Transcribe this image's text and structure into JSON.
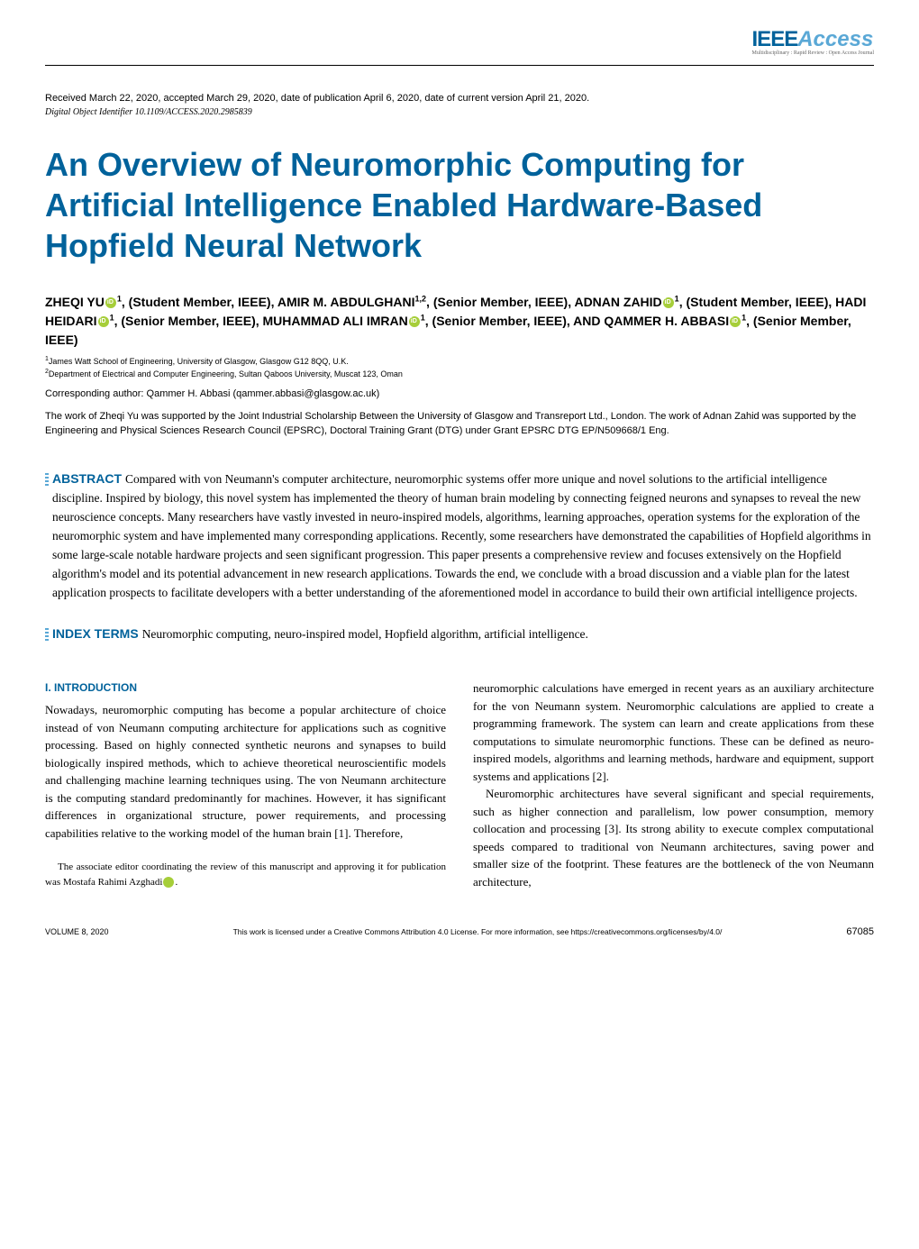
{
  "logo": {
    "ieee": "IEEE",
    "access": "Access",
    "tagline": "Multidisciplinary : Rapid Review : Open Access Journal"
  },
  "received_line": "Received March 22, 2020, accepted March 29, 2020, date of publication April 6, 2020, date of current version April 21, 2020.",
  "doi_line": "Digital Object Identifier 10.1109/ACCESS.2020.2985839",
  "title": "An Overview of Neuromorphic Computing for Artificial Intelligence Enabled Hardware-Based Hopfield Neural Network",
  "authors_html": "ZHEQI YU<span class='orcid'></span><sup>1</sup>, (Student Member, IEEE), AMIR M. ABDULGHANI<sup>1,2</sup>, (Senior Member, IEEE), ADNAN ZAHID<span class='orcid'></span><sup>1</sup>, (Student Member, IEEE), HADI HEIDARI<span class='orcid'></span><sup>1</sup>, (Senior Member, IEEE), MUHAMMAD ALI IMRAN<span class='orcid'></span><sup>1</sup>, (Senior Member, IEEE), AND QAMMER H. ABBASI<span class='orcid'></span><sup>1</sup>, (Senior Member, IEEE)",
  "affiliations": {
    "a1": "James Watt School of Engineering, University of Glasgow, Glasgow G12 8QQ, U.K.",
    "a2": "Department of Electrical and Computer Engineering, Sultan Qaboos University, Muscat 123, Oman"
  },
  "corresponding": "Corresponding author: Qammer H. Abbasi (qammer.abbasi@glasgow.ac.uk)",
  "funding": "The work of Zheqi Yu was supported by the Joint Industrial Scholarship Between the University of Glasgow and Transreport Ltd., London. The work of Adnan Zahid was supported by the Engineering and Physical Sciences Research Council (EPSRC), Doctoral Training Grant (DTG) under Grant EPSRC DTG EP/N509668/1 Eng.",
  "abstract": {
    "label": "ABSTRACT",
    "text": "Compared with von Neumann's computer architecture, neuromorphic systems offer more unique and novel solutions to the artificial intelligence discipline. Inspired by biology, this novel system has implemented the theory of human brain modeling by connecting feigned neurons and synapses to reveal the new neuroscience concepts. Many researchers have vastly invested in neuro-inspired models, algorithms, learning approaches, operation systems for the exploration of the neuromorphic system and have implemented many corresponding applications. Recently, some researchers have demonstrated the capabilities of Hopfield algorithms in some large-scale notable hardware projects and seen significant progression. This paper presents a comprehensive review and focuses extensively on the Hopfield algorithm's model and its potential advancement in new research applications. Towards the end, we conclude with a broad discussion and a viable plan for the latest application prospects to facilitate developers with a better understanding of the aforementioned model in accordance to build their own artificial intelligence projects."
  },
  "index": {
    "label": "INDEX TERMS",
    "text": "Neuromorphic computing, neuro-inspired model, Hopfield algorithm, artificial intelligence."
  },
  "section_intro": "I. INTRODUCTION",
  "body": {
    "col1_p1": "Nowadays, neuromorphic computing has become a popular architecture of choice instead of von Neumann computing architecture for applications such as cognitive processing. Based on highly connected synthetic neurons and synapses to build biologically inspired methods, which to achieve theoretical neuroscientific models and challenging machine learning techniques using. The von Neumann architecture is the computing standard predominantly for machines. However, it has significant differences in organizational structure, power requirements, and processing capabilities relative to the working model of the human brain [1]. Therefore,",
    "col1_editor": "The associate editor coordinating the review of this manuscript and approving it for publication was Mostafa Rahimi Azghadi",
    "col2_p1": "neuromorphic calculations have emerged in recent years as an auxiliary architecture for the von Neumann system. Neuromorphic calculations are applied to create a programming framework. The system can learn and create applications from these computations to simulate neuromorphic functions. These can be defined as neuro-inspired models, algorithms and learning methods, hardware and equipment, support systems and applications [2].",
    "col2_p2": "Neuromorphic architectures have several significant and special requirements, such as higher connection and parallelism, low power consumption, memory collocation and processing [3]. Its strong ability to execute complex computational speeds compared to traditional von Neumann architectures, saving power and smaller size of the footprint. These features are the bottleneck of the von Neumann architecture,"
  },
  "footer": {
    "volume": "VOLUME 8, 2020",
    "license": "This work is licensed under a Creative Commons Attribution 4.0 License. For more information, see https://creativecommons.org/licenses/by/4.0/",
    "page": "67085"
  },
  "colors": {
    "primary": "#00629b",
    "accent": "#5aa8d6",
    "orcid": "#a6ce39"
  }
}
